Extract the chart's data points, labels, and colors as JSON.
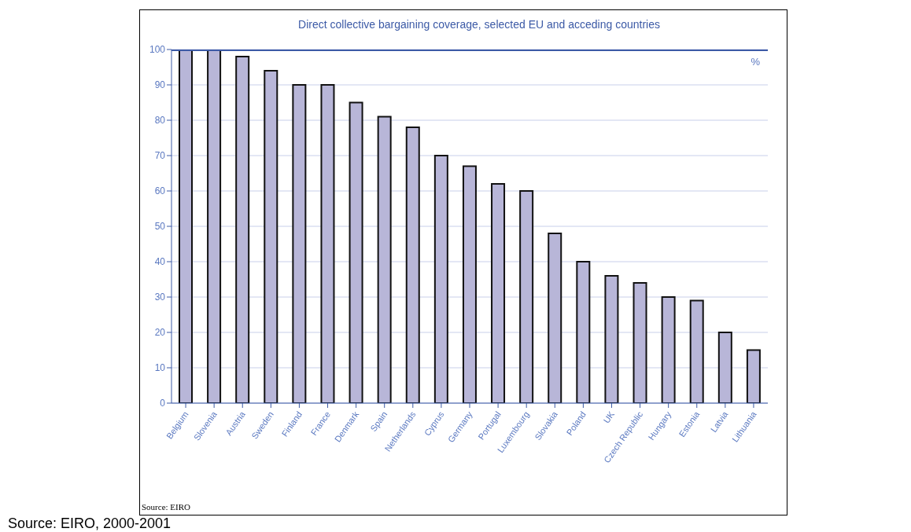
{
  "chart_data": {
    "type": "bar",
    "title": "Direct collective bargaining coverage, selected EU and acceding countries",
    "ylabel": "%",
    "categories": [
      "Belgium",
      "Slovenia",
      "Austria",
      "Sweden",
      "Finland",
      "France",
      "Denmark",
      "Spain",
      "Netherlands",
      "Cyprus",
      "Germany",
      "Portugal",
      "Luxembourg",
      "Slovakia",
      "Poland",
      "UK",
      "Czech Republic",
      "Hungary",
      "Estonia",
      "Latvia",
      "Lithuania"
    ],
    "values": [
      100,
      100,
      98,
      94,
      90,
      90,
      85,
      81,
      78,
      70,
      67,
      62,
      60,
      48,
      40,
      36,
      34,
      30,
      29,
      20,
      15
    ],
    "color": "#b8b6d8",
    "ylim": [
      0,
      100
    ],
    "yticks": [
      0,
      10,
      20,
      30,
      40,
      50,
      60,
      70,
      80,
      90,
      100
    ],
    "grid": "y",
    "annotations": [
      "Source: EIRO",
      "Source: EIRO, 2000-2001"
    ]
  }
}
